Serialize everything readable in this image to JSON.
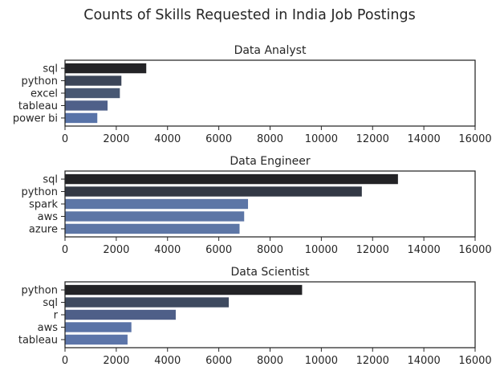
{
  "chart_data": {
    "type": "bar",
    "orientation": "horizontal",
    "title": "Counts of Skills Requested in India Job Postings",
    "xlim": [
      0,
      16000
    ],
    "xticks": [
      0,
      2000,
      4000,
      6000,
      8000,
      10000,
      12000,
      14000,
      16000
    ],
    "grid": false,
    "legend": "none",
    "panels": [
      {
        "title": "Data Analyst",
        "categories": [
          "sql",
          "python",
          "excel",
          "tableau",
          "power bi"
        ],
        "values": [
          3170,
          2200,
          2140,
          1660,
          1260
        ],
        "colors": [
          "#232326",
          "#3b4558",
          "#485873",
          "#4f6089",
          "#5873a8"
        ]
      },
      {
        "title": "Data Engineer",
        "categories": [
          "sql",
          "python",
          "spark",
          "aws",
          "azure"
        ],
        "values": [
          12990,
          11580,
          7140,
          6990,
          6810
        ],
        "colors": [
          "#232326",
          "#333945",
          "#5d76a6",
          "#5d76a6",
          "#5d76a6"
        ]
      },
      {
        "title": "Data Scientist",
        "categories": [
          "python",
          "sql",
          "r",
          "aws",
          "tableau"
        ],
        "values": [
          9250,
          6390,
          4320,
          2590,
          2440
        ],
        "colors": [
          "#232326",
          "#3e4a5f",
          "#4e5f88",
          "#5a73a6",
          "#5c75a9"
        ]
      }
    ]
  }
}
